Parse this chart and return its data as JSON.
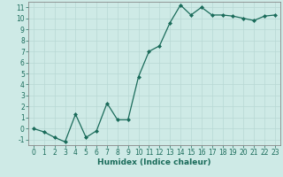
{
  "x": [
    0,
    1,
    2,
    3,
    4,
    5,
    6,
    7,
    8,
    9,
    10,
    11,
    12,
    13,
    14,
    15,
    16,
    17,
    18,
    19,
    20,
    21,
    22,
    23
  ],
  "y": [
    0.0,
    -0.3,
    -0.8,
    -1.2,
    1.3,
    -0.8,
    -0.2,
    2.3,
    0.8,
    0.8,
    4.7,
    7.0,
    7.5,
    9.6,
    11.2,
    10.3,
    11.0,
    10.3,
    10.3,
    10.2,
    10.0,
    9.8,
    10.2,
    10.3
  ],
  "line_color": "#1a6b5a",
  "marker": "D",
  "marker_size": 2.0,
  "bg_color": "#ceeae6",
  "grid_color": "#b8d8d4",
  "xlabel": "Humidex (Indice chaleur)",
  "xlim": [
    -0.5,
    23.5
  ],
  "ylim": [
    -1.5,
    11.5
  ],
  "xticks": [
    0,
    1,
    2,
    3,
    4,
    5,
    6,
    7,
    8,
    9,
    10,
    11,
    12,
    13,
    14,
    15,
    16,
    17,
    18,
    19,
    20,
    21,
    22,
    23
  ],
  "yticks": [
    -1,
    0,
    1,
    2,
    3,
    4,
    5,
    6,
    7,
    8,
    9,
    10,
    11
  ],
  "tick_fontsize": 5.5,
  "xlabel_fontsize": 6.5,
  "axis_color": "#1a6b5a",
  "spine_color": "#888888",
  "linewidth": 0.9
}
